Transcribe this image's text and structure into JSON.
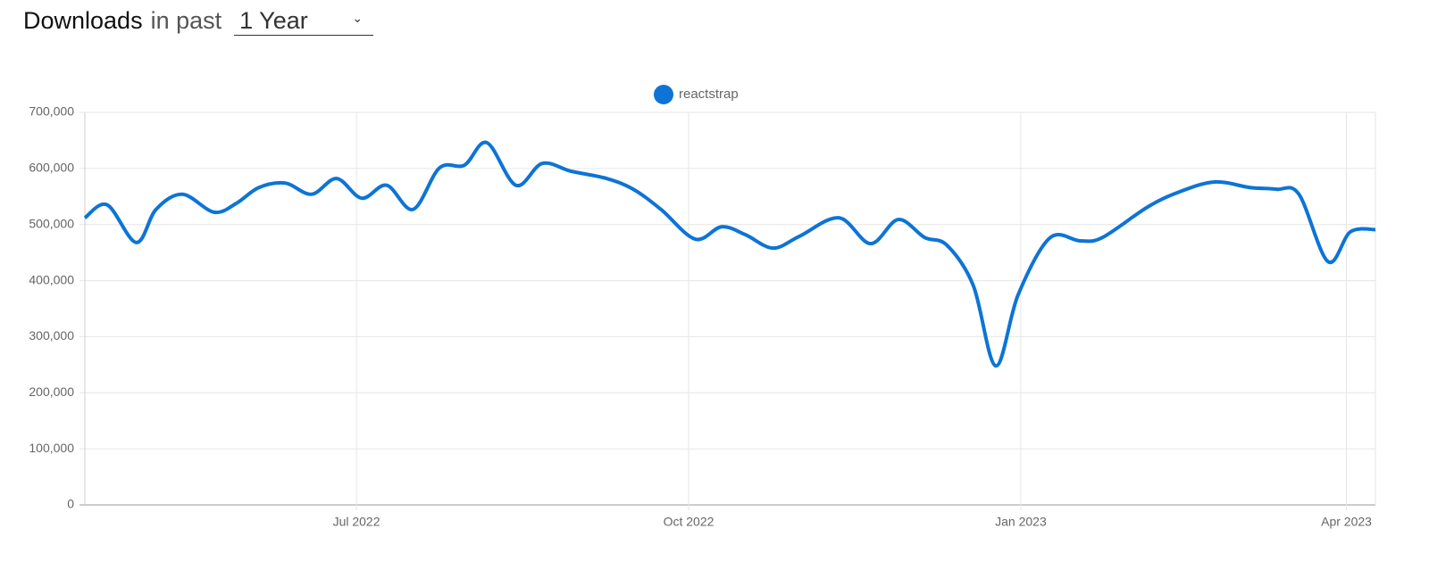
{
  "header": {
    "title": "Downloads",
    "subtitle": "in past",
    "period": "1 Year"
  },
  "chart_data": {
    "type": "line",
    "x": [
      2022.29,
      2022.307,
      2022.329,
      2022.344,
      2022.364,
      2022.388,
      2022.405,
      2022.422,
      2022.442,
      2022.462,
      2022.481,
      2022.5,
      2022.519,
      2022.539,
      2022.559,
      2022.578,
      2022.595,
      2022.617,
      2022.637,
      2022.659,
      2022.686,
      2022.706,
      2022.727,
      2022.753,
      2022.773,
      2022.791,
      2022.812,
      2022.832,
      2022.862,
      2022.886,
      2022.907,
      2022.927,
      2022.944,
      2022.964,
      2022.981,
      2022.998,
      2023.022,
      2023.045,
      2023.062,
      2023.096,
      2023.12,
      2023.147,
      2023.174,
      2023.194,
      2023.211,
      2023.233,
      2023.25,
      2023.269
    ],
    "series": [
      {
        "name": "reactstrap",
        "color": "#0d74d6",
        "values": [
          512000,
          535000,
          468000,
          527000,
          554000,
          522000,
          538000,
          566000,
          574000,
          554000,
          582000,
          547000,
          570000,
          527000,
          601000,
          606000,
          646000,
          570000,
          609000,
          595000,
          582000,
          563000,
          527000,
          474000,
          496000,
          482000,
          458000,
          479000,
          512000,
          466000,
          509000,
          477000,
          463000,
          391000,
          248000,
          375000,
          476000,
          471000,
          477000,
          531000,
          558000,
          576000,
          566000,
          563000,
          554000,
          434000,
          487000,
          491000
        ]
      }
    ],
    "xlim": [
      2022.29,
      2023.269
    ],
    "xticks": [
      {
        "value": 2022.496,
        "label": "Jul 2022"
      },
      {
        "value": 2022.748,
        "label": "Oct 2022"
      },
      {
        "value": 2023.0,
        "label": "Jan 2023"
      },
      {
        "value": 2023.247,
        "label": "Apr 2023"
      }
    ],
    "ylim": [
      0,
      700000
    ],
    "yticks": [
      0,
      {
        "value": 100000,
        "label": "100,000"
      },
      {
        "value": 200000,
        "label": "200,000"
      },
      {
        "value": 300000,
        "label": "300,000"
      },
      {
        "value": 400000,
        "label": "400,000"
      },
      {
        "value": 500000,
        "label": "500,000"
      },
      {
        "value": 600000,
        "label": "600,000"
      },
      {
        "value": 700000,
        "label": "700,000"
      }
    ],
    "grid": true,
    "legend": "top"
  }
}
